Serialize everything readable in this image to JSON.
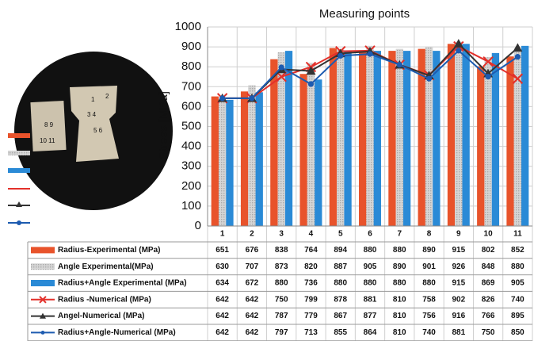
{
  "chart_data": {
    "type": "bar",
    "title": "Measuring points",
    "y_label": "Stress [MPa]",
    "categories": [
      "1",
      "2",
      "3",
      "4",
      "5",
      "6",
      "7",
      "8",
      "9",
      "10",
      "11"
    ],
    "ylim": [
      0,
      1000
    ],
    "yticks": [
      0,
      100,
      200,
      300,
      400,
      500,
      600,
      700,
      800,
      900,
      1000
    ],
    "grid": true,
    "series": [
      {
        "name": "Radius-Experimental (MPa)",
        "type": "bar",
        "color": "#e8532b",
        "values": [
          651,
          676,
          838,
          764,
          894,
          880,
          880,
          890,
          915,
          802,
          852
        ]
      },
      {
        "name": "Angle Experimental(MPa)",
        "type": "bar",
        "color": "#c9c9c9",
        "values": [
          630,
          707,
          873,
          820,
          887,
          905,
          890,
          901,
          926,
          848,
          880
        ]
      },
      {
        "name": "Radius+Angle Experimental (MPa)",
        "type": "bar",
        "color": "#2a8ad6",
        "values": [
          634,
          672,
          880,
          736,
          880,
          880,
          880,
          880,
          915,
          869,
          905
        ]
      },
      {
        "name": "Radius -Numerical (MPa)",
        "type": "line",
        "marker": "x",
        "color": "#e3302a",
        "values": [
          642,
          642,
          750,
          799,
          878,
          881,
          810,
          758,
          902,
          826,
          740
        ]
      },
      {
        "name": "Angel-Numerical (MPa)",
        "type": "line",
        "marker": "triangle",
        "color": "#333333",
        "values": [
          642,
          642,
          787,
          779,
          867,
          877,
          810,
          756,
          916,
          766,
          895
        ]
      },
      {
        "name": "Radius+Angle-Numerical (MPa)",
        "type": "line",
        "marker": "circle",
        "color": "#1d5bb0",
        "values": [
          642,
          642,
          797,
          713,
          855,
          864,
          810,
          740,
          881,
          750,
          850
        ]
      }
    ]
  }
}
